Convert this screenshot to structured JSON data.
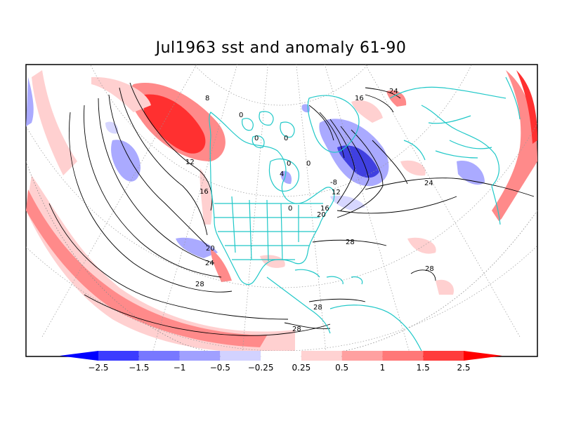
{
  "title": "Jul1963 sst and anomaly 61-90",
  "colorbar": {
    "labels": [
      "-2.5",
      "-1.5",
      "-1",
      "-0.5",
      "-0.25",
      "0.25",
      "0.5",
      "1",
      "1.5",
      "2.5"
    ],
    "colors": [
      "#0000ff",
      "#3c3cff",
      "#7878ff",
      "#a0a0ff",
      "#d2d2ff",
      "#ffffff",
      "#ffd2d2",
      "#ffa0a0",
      "#ff7878",
      "#ff3c3c",
      "#ff0000"
    ]
  },
  "contour_labels": [
    "8",
    "0",
    "0",
    "0",
    "0",
    "0",
    "4",
    "0",
    "12",
    "16",
    "20",
    "24",
    "28",
    "16",
    "24",
    "-8",
    "12",
    "16",
    "20",
    "24",
    "28",
    "28",
    "28",
    "28"
  ],
  "map_colors": {
    "coast": "#20c8c8",
    "contour": "#000000",
    "grid": "#999999",
    "warm_strong": "#ff3030",
    "warm": "#ff8a8a",
    "warm_light": "#ffd0d0",
    "cool_light": "#d6d6ff",
    "cool": "#aaaaff",
    "cool_strong": "#4040e0"
  }
}
